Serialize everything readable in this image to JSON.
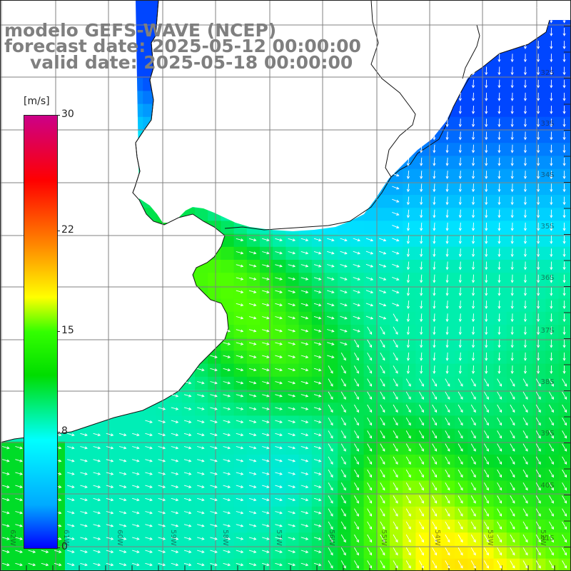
{
  "title": {
    "line1": "modelo GEFS-WAVE (NCEP)",
    "line2": "forecast date: 2025-05-12 00:00:00",
    "line3": "valid date: 2025-05-18 00:00:00"
  },
  "colorbar": {
    "unit": "[m/s]",
    "ticks": [
      {
        "value": 30,
        "label": "30"
      },
      {
        "value": 22,
        "label": "22"
      },
      {
        "value": 15,
        "label": "15"
      },
      {
        "value": 8,
        "label": "8"
      },
      {
        "value": 0,
        "label": "0"
      }
    ],
    "colors": [
      "#0000ff",
      "#00aaff",
      "#00ffff",
      "#00dd00",
      "#33ff00",
      "#ffff00",
      "#ff8800",
      "#ff0000",
      "#cc0088"
    ]
  },
  "map": {
    "lat_labels": [
      "32S",
      "33S",
      "34S",
      "35S",
      "36S",
      "37S",
      "38S",
      "39S",
      "40S",
      "41S"
    ],
    "lon_labels": [
      "62W",
      "61W",
      "60W",
      "59W",
      "58W",
      "57W",
      "56W",
      "55W",
      "54W",
      "53W",
      "52W"
    ],
    "land_color": "#ffffff",
    "grid_color": "#808080",
    "arrow_color": "#ffffff"
  }
}
